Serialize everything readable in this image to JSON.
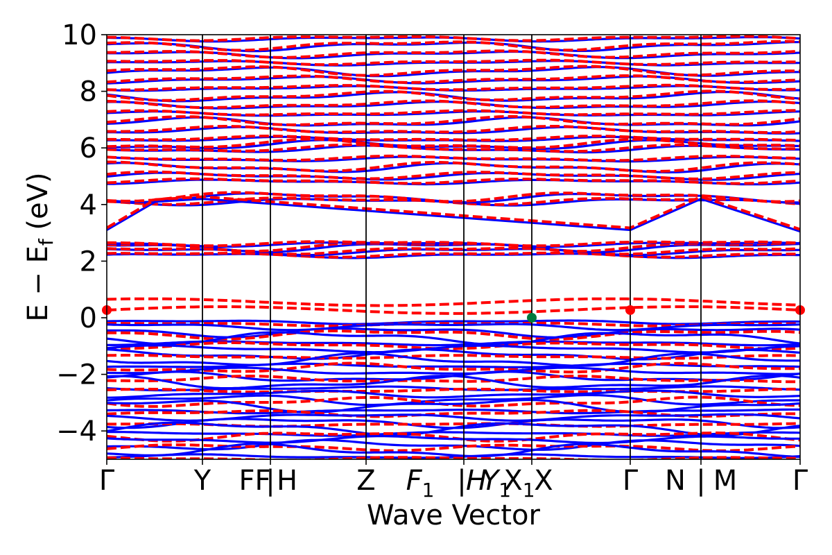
{
  "chart_data": {
    "type": "line",
    "title": "",
    "xlabel": "Wave Vector",
    "ylabel": "E − E_f (eV)",
    "ylabel_parts": {
      "main": "E − E",
      "sub": "f",
      "unit": " (eV)"
    },
    "xlim": [
      0,
      10
    ],
    "ylim": [
      -5,
      10
    ],
    "yticks": [
      "−4",
      "−2",
      "0",
      "2",
      "4",
      "6",
      "8",
      "10"
    ],
    "ytick_values": [
      -4,
      -2,
      0,
      2,
      4,
      6,
      8,
      10
    ],
    "kpoint_positions": [
      0,
      1.38,
      2.36,
      3.74,
      5.15,
      6.13,
      7.55,
      8.57,
      10
    ],
    "xtick_labels": [
      {
        "text": "Γ",
        "x": 0
      },
      {
        "text": "Y",
        "x": 1.38
      },
      {
        "text": "F",
        "x": 2.02
      },
      {
        "text": "F",
        "x": 2.25
      },
      {
        "text": "|",
        "x": 2.36
      },
      {
        "text": "H",
        "x": 2.6
      },
      {
        "text": "Z",
        "x": 3.74
      },
      {
        "text": "F",
        "x": 4.52,
        "italic": true,
        "sub": "1"
      },
      {
        "text": "|",
        "x": 5.12
      },
      {
        "text": "H",
        "x": 5.33,
        "italic": true
      },
      {
        "text": "Y",
        "x": 5.62,
        "italic": true,
        "sub": "1"
      },
      {
        "text": "X",
        "x": 5.95,
        "sub": "1"
      },
      {
        "text": "X",
        "x": 6.3
      },
      {
        "text": "Γ",
        "x": 7.55
      },
      {
        "text": "N",
        "x": 8.2
      },
      {
        "text": "|",
        "x": 8.57
      },
      {
        "text": "M",
        "x": 8.92
      },
      {
        "text": "Γ",
        "x": 10
      }
    ],
    "grid": false,
    "series": [
      {
        "name": "",
        "color": "#0000ff",
        "style": "solid"
      },
      {
        "name": "",
        "color": "#ff0000",
        "style": "dashed"
      }
    ],
    "markers": [
      {
        "x": 0,
        "y": 0.27,
        "color": "#ff0000"
      },
      {
        "x": 7.55,
        "y": 0.27,
        "color": "#ff0000"
      },
      {
        "x": 10,
        "y": 0.27,
        "color": "#ff0000"
      },
      {
        "x": 6.13,
        "y": 0.0,
        "color": "#007a3d"
      }
    ],
    "band_groups": {
      "conduction_red": [
        0.27,
        0.55
      ],
      "high_energy_levels": [
        2.2,
        2.35,
        2.5,
        2.6,
        4.1,
        4.25,
        4.8,
        5.0,
        5.3,
        5.6,
        5.95,
        6.1,
        6.3,
        6.6,
        6.9,
        7.2,
        7.5,
        7.8,
        8.1,
        8.4,
        8.7,
        9.0,
        9.3,
        9.6,
        9.85
      ],
      "valence_levels": [
        -0.15,
        -0.3,
        -0.5,
        -0.7,
        -0.9,
        -1.1,
        -1.3,
        -1.5,
        -1.7,
        -1.9,
        -2.1,
        -2.3,
        -2.5,
        -2.7,
        -2.9,
        -3.1,
        -3.3,
        -3.5,
        -3.7,
        -3.9,
        -4.1,
        -4.3,
        -4.5,
        -4.7,
        -4.9
      ],
      "dispersive_band": {
        "x": [
          0,
          0.7,
          1.38,
          7.55,
          8.57,
          10
        ],
        "y": [
          3.1,
          4.1,
          4.2,
          3.1,
          4.2,
          3.05
        ]
      }
    }
  }
}
